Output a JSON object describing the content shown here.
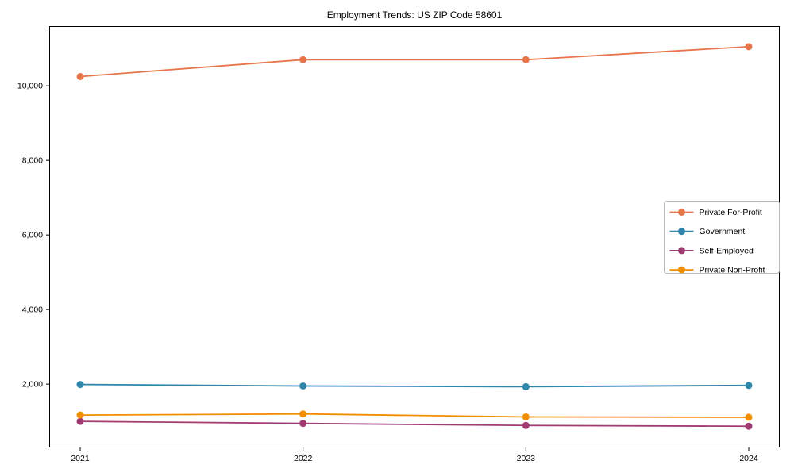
{
  "chart_data": {
    "type": "line",
    "title": "Employment Trends: US ZIP Code 58601",
    "xlabel": "",
    "ylabel": "",
    "categories": [
      "2021",
      "2022",
      "2023",
      "2024"
    ],
    "series": [
      {
        "name": "Private For-Profit",
        "color": "#E8764B",
        "values": [
          10250,
          10700,
          10700,
          11050
        ]
      },
      {
        "name": "Government",
        "color": "#2E86AB",
        "values": [
          1990,
          1950,
          1930,
          1965
        ]
      },
      {
        "name": "Self-Employed",
        "color": "#A23B72",
        "values": [
          1000,
          945,
          890,
          870
        ]
      },
      {
        "name": "Private Non-Profit",
        "color": "#F18F01",
        "values": [
          1170,
          1200,
          1120,
          1110
        ]
      }
    ],
    "yticks": [
      2000,
      4000,
      6000,
      8000,
      10000
    ],
    "ytick_labels": [
      "2,000",
      "4,000",
      "6,000",
      "8,000",
      "10,000"
    ],
    "ylim": [
      300,
      11600
    ],
    "grid": false,
    "marker": "circle",
    "legend_position": "center-right",
    "axis_color": "#000000",
    "legend_border_color": "#bbbbbb",
    "background_color": "#ffffff"
  }
}
